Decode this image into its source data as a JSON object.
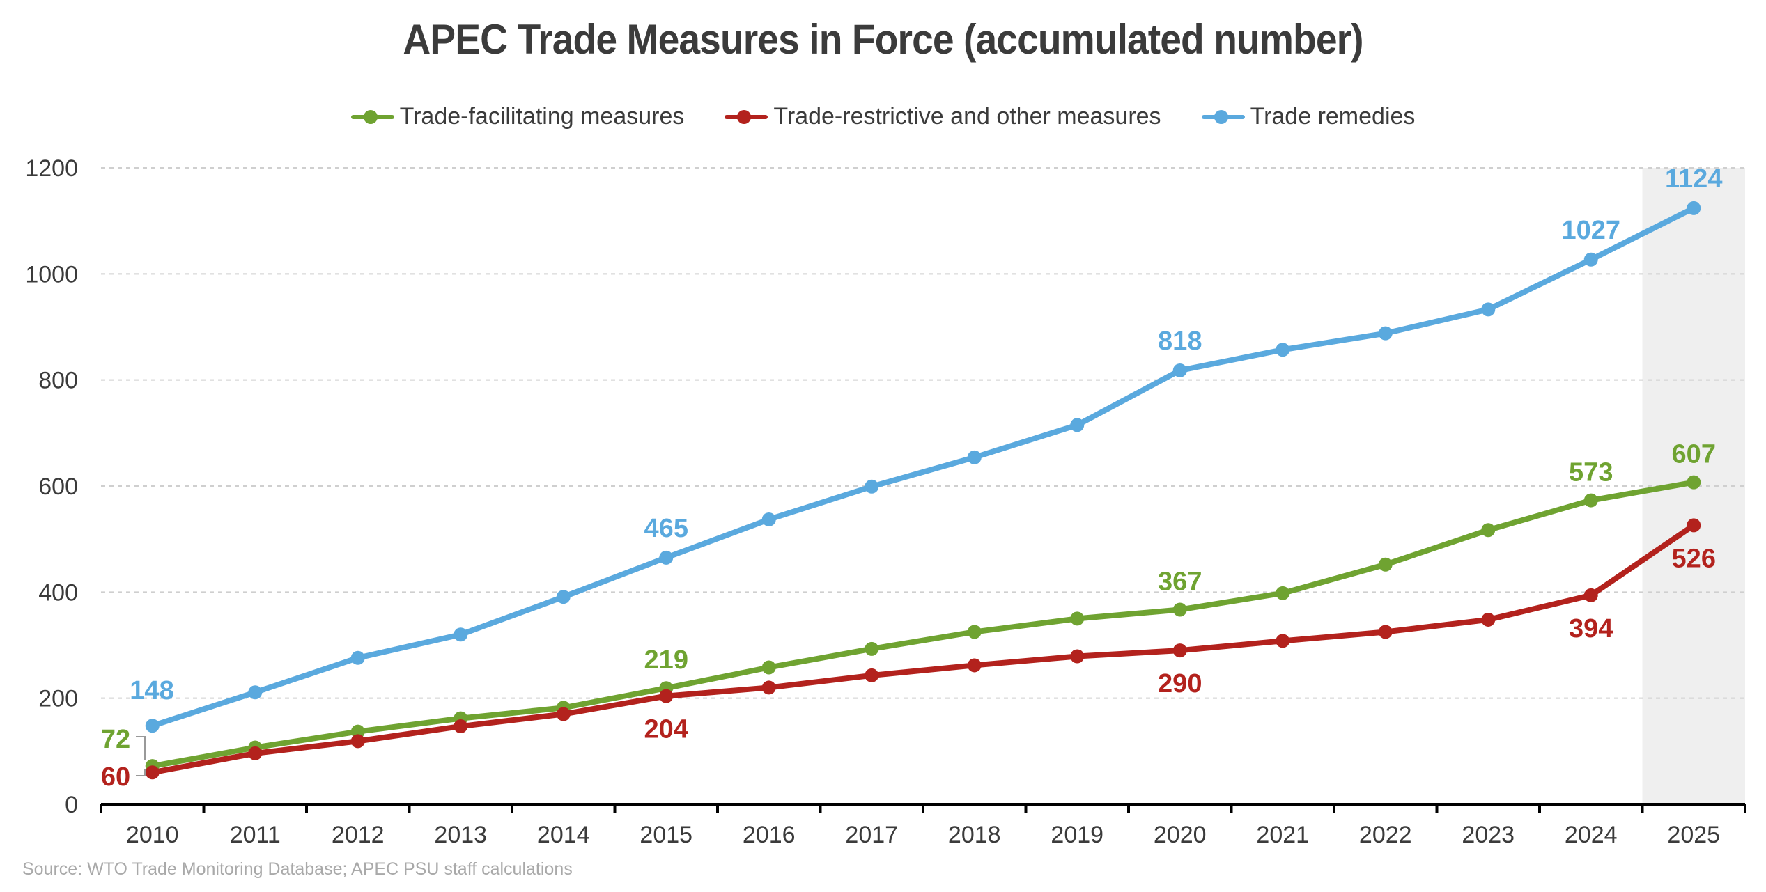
{
  "title": "APEC Trade Measures in Force (accumulated number)",
  "source": "Source: WTO Trade Monitoring Database; APEC PSU staff calculations",
  "chart_data": {
    "type": "line",
    "title": "APEC Trade Measures in Force (accumulated number)",
    "xlabel": "",
    "ylabel": "",
    "categories": [
      "2010",
      "2011",
      "2012",
      "2013",
      "2014",
      "2015",
      "2016",
      "2017",
      "2018",
      "2019",
      "2020",
      "2021",
      "2022",
      "2023",
      "2024",
      "2025"
    ],
    "ylim": [
      0,
      1200
    ],
    "yticks": [
      0,
      200,
      400,
      600,
      800,
      1000,
      1200
    ],
    "grid": true,
    "legend_position": "top-center",
    "highlighted_category": "2025",
    "series": [
      {
        "name": "Trade-facilitating measures",
        "color": "#6fa331",
        "values": [
          72,
          107,
          137,
          162,
          182,
          219,
          258,
          293,
          325,
          350,
          367,
          398,
          452,
          517,
          573,
          607
        ],
        "labels": [
          {
            "index": 0,
            "text": "72"
          },
          {
            "index": 5,
            "text": "219"
          },
          {
            "index": 10,
            "text": "367"
          },
          {
            "index": 14,
            "text": "573"
          },
          {
            "index": 15,
            "text": "607"
          }
        ]
      },
      {
        "name": "Trade-restrictive and other measures",
        "color": "#b3221d",
        "values": [
          60,
          96,
          119,
          147,
          170,
          204,
          220,
          243,
          262,
          279,
          290,
          308,
          325,
          348,
          394,
          526
        ],
        "labels": [
          {
            "index": 0,
            "text": "60"
          },
          {
            "index": 5,
            "text": "204"
          },
          {
            "index": 10,
            "text": "290"
          },
          {
            "index": 14,
            "text": "394"
          },
          {
            "index": 15,
            "text": "526"
          }
        ]
      },
      {
        "name": "Trade remedies",
        "color": "#5aa9de",
        "values": [
          148,
          211,
          276,
          320,
          391,
          465,
          537,
          599,
          654,
          715,
          818,
          857,
          888,
          933,
          1027,
          1124
        ],
        "labels": [
          {
            "index": 0,
            "text": "148"
          },
          {
            "index": 5,
            "text": "465"
          },
          {
            "index": 10,
            "text": "818"
          },
          {
            "index": 14,
            "text": "1027"
          },
          {
            "index": 15,
            "text": "1124"
          }
        ]
      }
    ]
  }
}
